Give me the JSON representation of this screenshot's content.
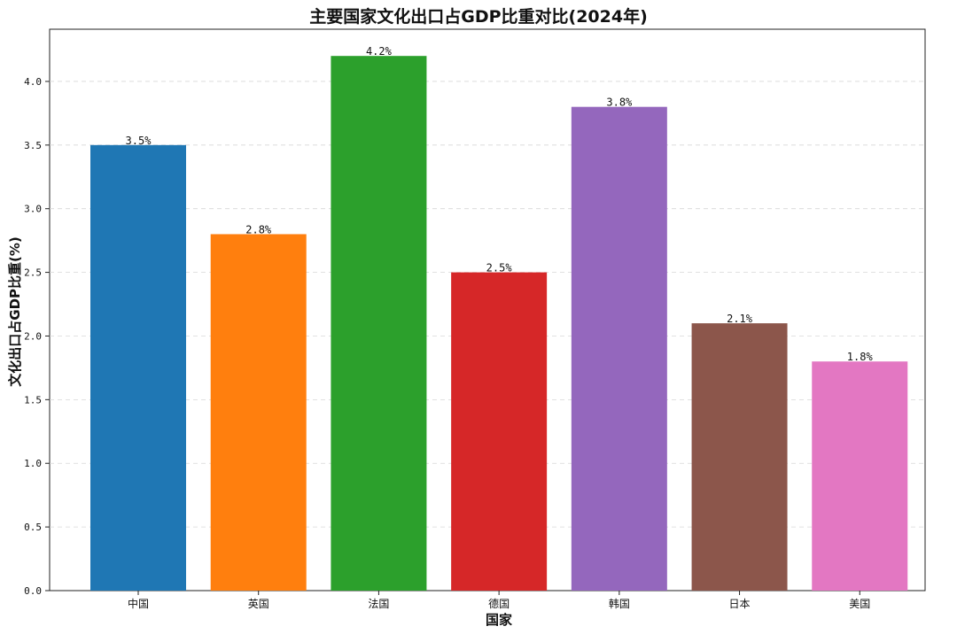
{
  "chart_data": {
    "type": "bar",
    "title": "主要国家文化出口占GDP比重对比(2024年)",
    "xlabel": "国家",
    "ylabel": "文化出口占GDP比重(%)",
    "categories": [
      "中国",
      "英国",
      "法国",
      "德国",
      "韩国",
      "日本",
      "美国"
    ],
    "values": [
      3.5,
      2.8,
      4.2,
      2.5,
      3.8,
      2.1,
      1.8
    ],
    "data_labels": [
      "3.5%",
      "2.8%",
      "4.2%",
      "2.5%",
      "3.8%",
      "2.1%",
      "1.8%"
    ],
    "colors": [
      "#1f77b4",
      "#ff7f0e",
      "#2ca02c",
      "#d62728",
      "#9467bd",
      "#8c564b",
      "#e377c2"
    ],
    "ylim": [
      0,
      4.41
    ],
    "yticks": [
      0.0,
      0.5,
      1.0,
      1.5,
      2.0,
      2.5,
      3.0,
      3.5,
      4.0
    ],
    "ytick_labels": [
      "0.0",
      "0.5",
      "1.0",
      "1.5",
      "2.0",
      "2.5",
      "3.0",
      "3.5",
      "4.0"
    ],
    "grid": true,
    "grid_axis": "y",
    "grid_style": "dashed"
  }
}
